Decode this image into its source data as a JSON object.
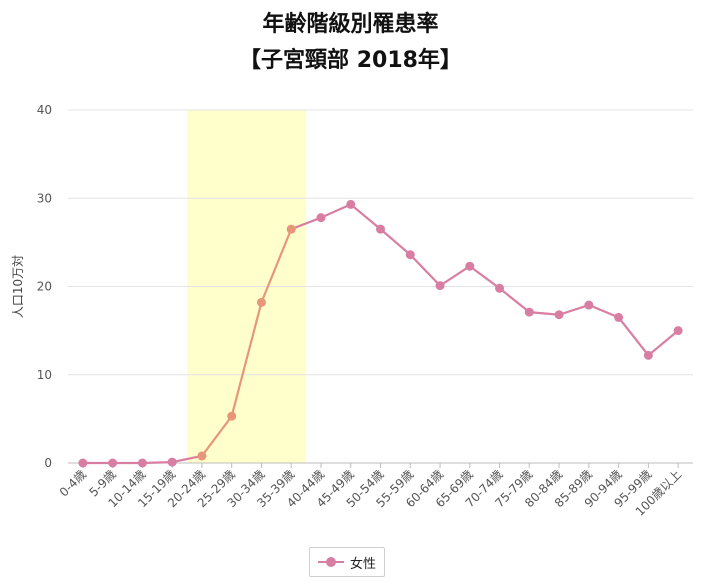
{
  "header": {
    "title_line1": "年齢階級別罹患率",
    "title_line2": "【子宮頸部 2018年】"
  },
  "colors": {
    "line_main": "#d97ea3",
    "line_highlight": "#e8967a",
    "highlight_band": "#ffffcc",
    "grid": "#e3e3e3"
  },
  "legend": {
    "label": "女性"
  },
  "chart_data": {
    "type": "line",
    "title": "年齢階級別罹患率 【子宮頸部 2018年】",
    "ylabel": "人口10万対",
    "xlabel": "",
    "ylim": [
      0,
      40
    ],
    "yticks": [
      0,
      10,
      20,
      30,
      40
    ],
    "grid": true,
    "legend_position": "bottom-center",
    "categories": [
      "0-4歳",
      "5-9歳",
      "10-14歳",
      "15-19歳",
      "20-24歳",
      "25-29歳",
      "30-34歳",
      "35-39歳",
      "40-44歳",
      "45-49歳",
      "50-54歳",
      "55-59歳",
      "60-64歳",
      "65-69歳",
      "70-74歳",
      "75-79歳",
      "80-84歳",
      "85-89歳",
      "90-94歳",
      "95-99歳",
      "100歳以上"
    ],
    "highlight_range": [
      "20-24歳",
      "35-39歳"
    ],
    "series": [
      {
        "name": "女性",
        "values": [
          0.0,
          0.0,
          0.0,
          0.1,
          0.8,
          5.3,
          18.2,
          26.5,
          27.8,
          29.3,
          26.5,
          23.6,
          20.1,
          22.3,
          19.8,
          17.1,
          16.8,
          17.9,
          16.5,
          12.2,
          15.0
        ]
      }
    ]
  }
}
